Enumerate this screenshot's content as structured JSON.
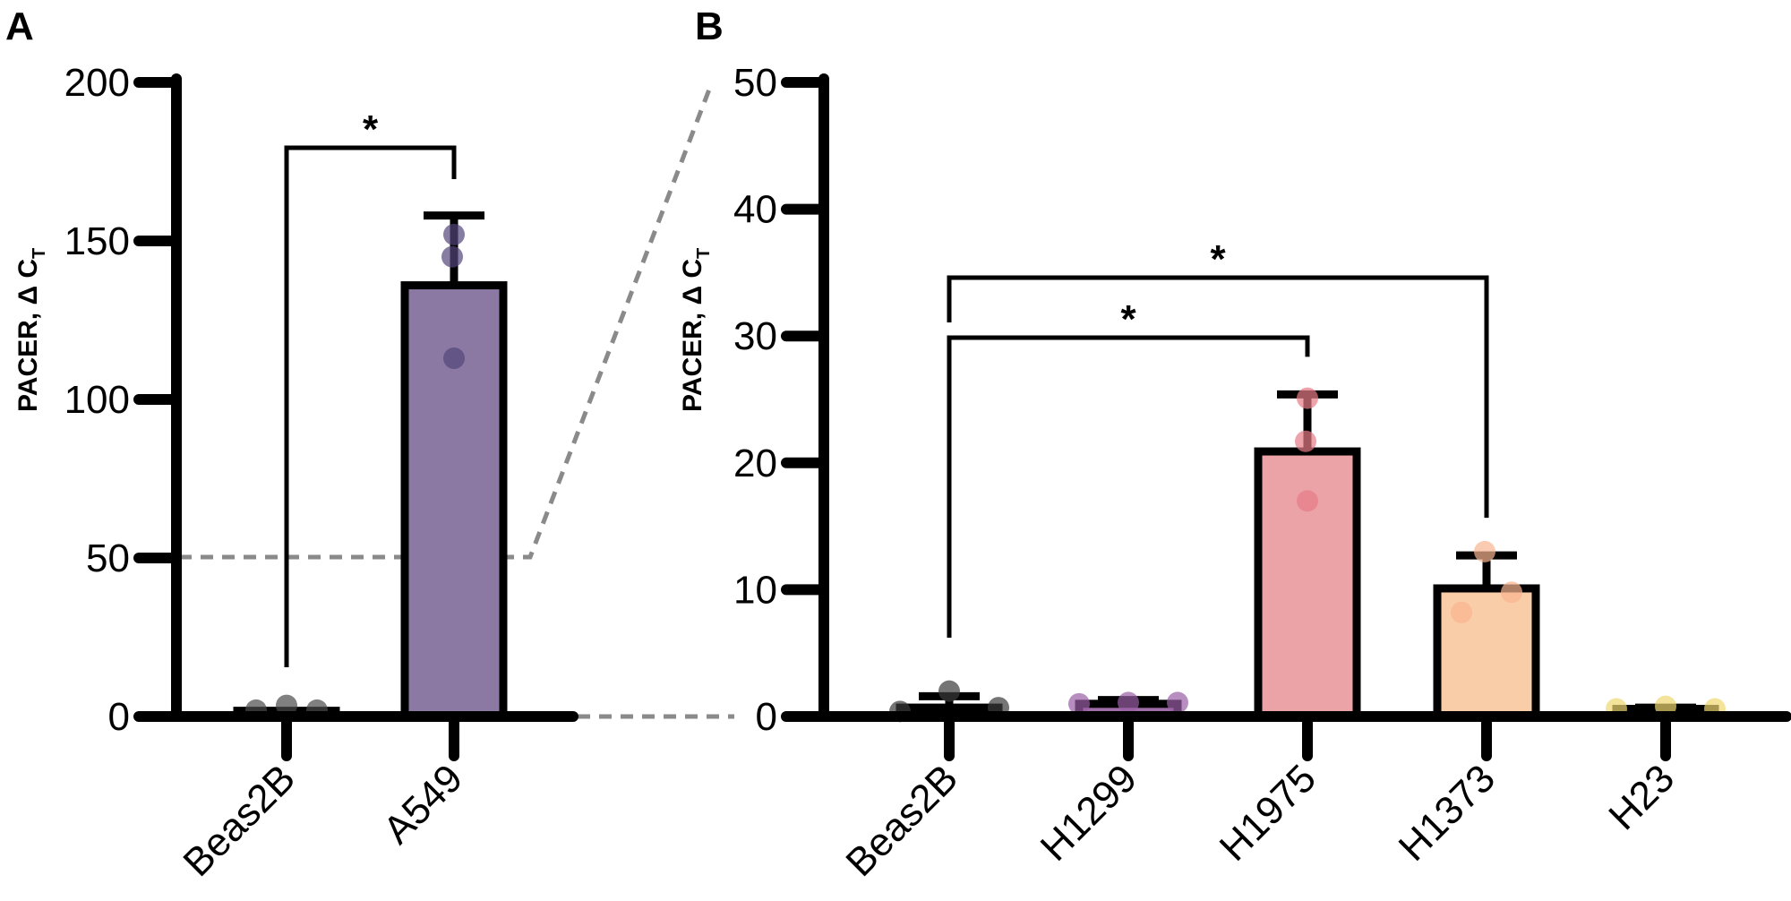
{
  "panels": [
    {
      "id": "A",
      "label": "A"
    },
    {
      "id": "B",
      "label": "B"
    }
  ],
  "chart_data": [
    {
      "type": "bar",
      "panel": "A",
      "ylabel_main": "PACER, Δ C",
      "ylabel_sub": "T",
      "ylim": [
        0,
        200
      ],
      "yticks": [
        0,
        50,
        100,
        150,
        200
      ],
      "categories": [
        "Beas2B",
        "A549"
      ],
      "values": [
        1.8,
        136
      ],
      "errors": [
        0,
        22
      ],
      "points": [
        [
          2,
          3.5,
          2
        ],
        [
          113,
          145,
          152
        ]
      ],
      "colors": [
        "#7a7a7a",
        "#8b79a3"
      ],
      "point_colors": [
        "#4a4a4a",
        "#54467a"
      ],
      "significance": [
        {
          "from": "Beas2B",
          "to": "A549",
          "label": "*"
        }
      ],
      "zoom_to_value": 50,
      "grid": false
    },
    {
      "type": "bar",
      "panel": "B",
      "ylabel_main": "PACER, Δ C",
      "ylabel_sub": "T",
      "ylim": [
        0,
        50
      ],
      "yticks": [
        0,
        10,
        20,
        30,
        40,
        50
      ],
      "categories": [
        "Beas2B",
        "H1299",
        "H1975",
        "H1373",
        "H23"
      ],
      "values": [
        0.7,
        1.0,
        20.9,
        10.1,
        0.6
      ],
      "errors": [
        0.9,
        0.3,
        4.5,
        2.6,
        0.1
      ],
      "points": [
        [
          0.4,
          2.0,
          0.7
        ],
        [
          1.0,
          1.1,
          1.1
        ],
        [
          17.0,
          21.7,
          25.1
        ],
        [
          8.2,
          13.0,
          9.8
        ],
        [
          0.6,
          0.8,
          0.6
        ]
      ],
      "colors": [
        "#808080",
        "#a06ea8",
        "#eba3a7",
        "#f9cda8",
        "#f5e27a"
      ],
      "point_colors": [
        "#3a3a3a",
        "#9a5ea6",
        "#e77a86",
        "#f9b590",
        "#f0d870"
      ],
      "significance": [
        {
          "from": "Beas2B",
          "to": "H1975",
          "label": "*"
        },
        {
          "from": "Beas2B",
          "to": "H1373",
          "label": "*"
        }
      ],
      "grid": false
    }
  ]
}
